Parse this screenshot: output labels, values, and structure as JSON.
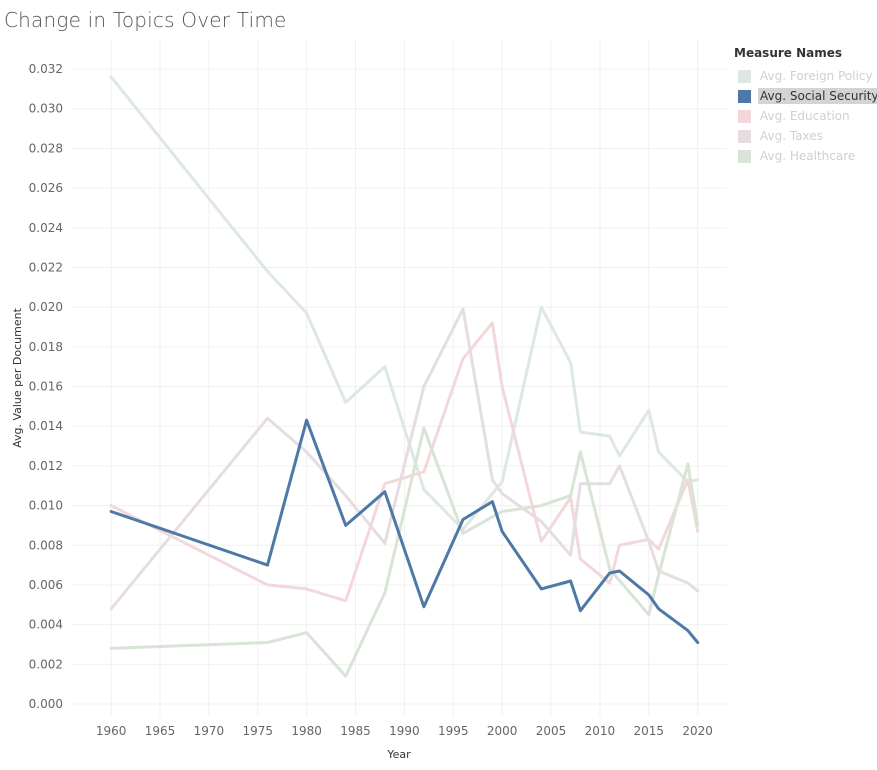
{
  "chart_data": {
    "type": "line",
    "title": "Change in Topics Over Time",
    "xlabel": "Year",
    "ylabel": "Avg. Value per Document",
    "xlim": [
      1956,
      2023
    ],
    "ylim": [
      0,
      0.032
    ],
    "x_ticks": [
      1960,
      1965,
      1970,
      1975,
      1980,
      1985,
      1990,
      1995,
      2000,
      2005,
      2010,
      2015,
      2020
    ],
    "y_ticks": [
      "0.000",
      "0.002",
      "0.004",
      "0.006",
      "0.008",
      "0.010",
      "0.012",
      "0.014",
      "0.016",
      "0.018",
      "0.020",
      "0.022",
      "0.024",
      "0.026",
      "0.028",
      "0.030",
      "0.032"
    ],
    "legend_title": "Measure Names",
    "legend_position": "right",
    "highlighted_series": "Avg. Social Security",
    "series": [
      {
        "name": "Avg. Foreign Policy",
        "color": "#dde8e2",
        "legend_color": "#dde8e2",
        "highlight": false,
        "x": [
          1960,
          1976,
          1980,
          1984,
          1988,
          1992,
          1996,
          2000,
          2004,
          2007,
          2008,
          2011,
          2012,
          2015,
          2016,
          2019,
          2020
        ],
        "y": [
          0.0316,
          0.0218,
          0.0197,
          0.0152,
          0.017,
          0.0108,
          0.0088,
          0.0112,
          0.02,
          0.0172,
          0.0137,
          0.0135,
          0.0125,
          0.0148,
          0.0127,
          0.0112,
          0.0113
        ]
      },
      {
        "name": "Avg. Social Security",
        "color": "#4e79a7",
        "legend_color": "#4e79a7",
        "highlight": true,
        "x": [
          1960,
          1976,
          1980,
          1984,
          1988,
          1992,
          1996,
          1999,
          2000,
          2004,
          2007,
          2008,
          2011,
          2012,
          2015,
          2016,
          2019,
          2020
        ],
        "y": [
          0.0097,
          0.007,
          0.0143,
          0.009,
          0.0107,
          0.0049,
          0.0093,
          0.0102,
          0.0087,
          0.0058,
          0.0062,
          0.0047,
          0.0066,
          0.0067,
          0.0055,
          0.0048,
          0.0037,
          0.0031
        ]
      },
      {
        "name": "Avg. Education",
        "color": "#f3d8da",
        "legend_color": "#f3d8da",
        "highlight": false,
        "x": [
          1960,
          1976,
          1980,
          1984,
          1988,
          1992,
          1996,
          1999,
          2000,
          2004,
          2007,
          2008,
          2011,
          2012,
          2015,
          2016,
          2019,
          2020
        ],
        "y": [
          0.01,
          0.006,
          0.0058,
          0.0052,
          0.0111,
          0.0117,
          0.0174,
          0.0192,
          0.016,
          0.0082,
          0.0104,
          0.0073,
          0.0061,
          0.008,
          0.0083,
          0.0078,
          0.0113,
          0.0087
        ]
      },
      {
        "name": "Avg. Taxes",
        "color": "#e6dde1",
        "legend_color": "#e6dde1",
        "highlight": false,
        "x": [
          1960,
          1976,
          1980,
          1984,
          1988,
          1992,
          1996,
          1999,
          2000,
          2004,
          2007,
          2008,
          2011,
          2012,
          2015,
          2016,
          2019,
          2020
        ],
        "y": [
          0.0048,
          0.0144,
          0.0127,
          0.0105,
          0.0081,
          0.016,
          0.0199,
          0.0113,
          0.0106,
          0.0092,
          0.0075,
          0.0111,
          0.0111,
          0.012,
          0.0082,
          0.0067,
          0.0061,
          0.0057
        ]
      },
      {
        "name": "Avg. Healthcare",
        "color": "#d8e4d6",
        "legend_color": "#d8e4d6",
        "highlight": false,
        "x": [
          1960,
          1976,
          1980,
          1984,
          1988,
          1992,
          1996,
          2000,
          2004,
          2007,
          2008,
          2011,
          2015,
          2016,
          2019,
          2020
        ],
        "y": [
          0.0028,
          0.0031,
          0.0036,
          0.0014,
          0.0056,
          0.0139,
          0.0086,
          0.0097,
          0.01,
          0.0105,
          0.0127,
          0.0068,
          0.0045,
          0.0065,
          0.0121,
          0.009
        ]
      }
    ]
  }
}
